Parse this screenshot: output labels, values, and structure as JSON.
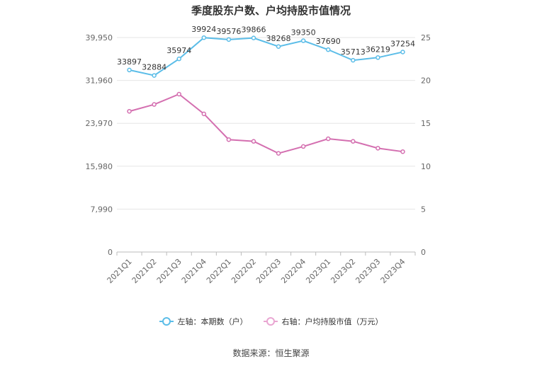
{
  "chart_data": {
    "type": "line",
    "title": "季度股东户数、户均持股市值情况",
    "categories": [
      "2021Q1",
      "2021Q2",
      "2021Q3",
      "2021Q4",
      "2022Q1",
      "2022Q2",
      "2022Q3",
      "2022Q4",
      "2023Q1",
      "2023Q2",
      "2023Q3",
      "2023Q4"
    ],
    "left_axis": {
      "min": 0,
      "max": 39950,
      "ticks": [
        "0",
        "7,990",
        "15,980",
        "23,970",
        "31,960",
        "39,950"
      ]
    },
    "right_axis": {
      "min": 0,
      "max": 25,
      "ticks": [
        "0",
        "5",
        "10",
        "15",
        "20",
        "25"
      ]
    },
    "series": [
      {
        "name": "左轴：本期数（户）",
        "axis": "left",
        "color": "#5bbde8",
        "values": [
          33897,
          32884,
          35974,
          39924,
          39576,
          39866,
          38268,
          39350,
          37690,
          35713,
          36219,
          37254
        ],
        "labels": [
          "33897",
          "32884",
          "35974",
          "39924",
          "39576",
          "39866",
          "38268",
          "39350",
          "37690",
          "35713",
          "36219",
          "37254"
        ]
      },
      {
        "name": "右轴：户均持股市值（万元）",
        "axis": "right",
        "color": "#d46fb0",
        "values": [
          16.4,
          17.2,
          18.4,
          16.1,
          13.1,
          12.9,
          11.5,
          12.3,
          13.2,
          12.9,
          12.1,
          11.7
        ]
      }
    ],
    "grid": true,
    "legend_position": "bottom"
  },
  "source": "数据来源：恒生聚源"
}
